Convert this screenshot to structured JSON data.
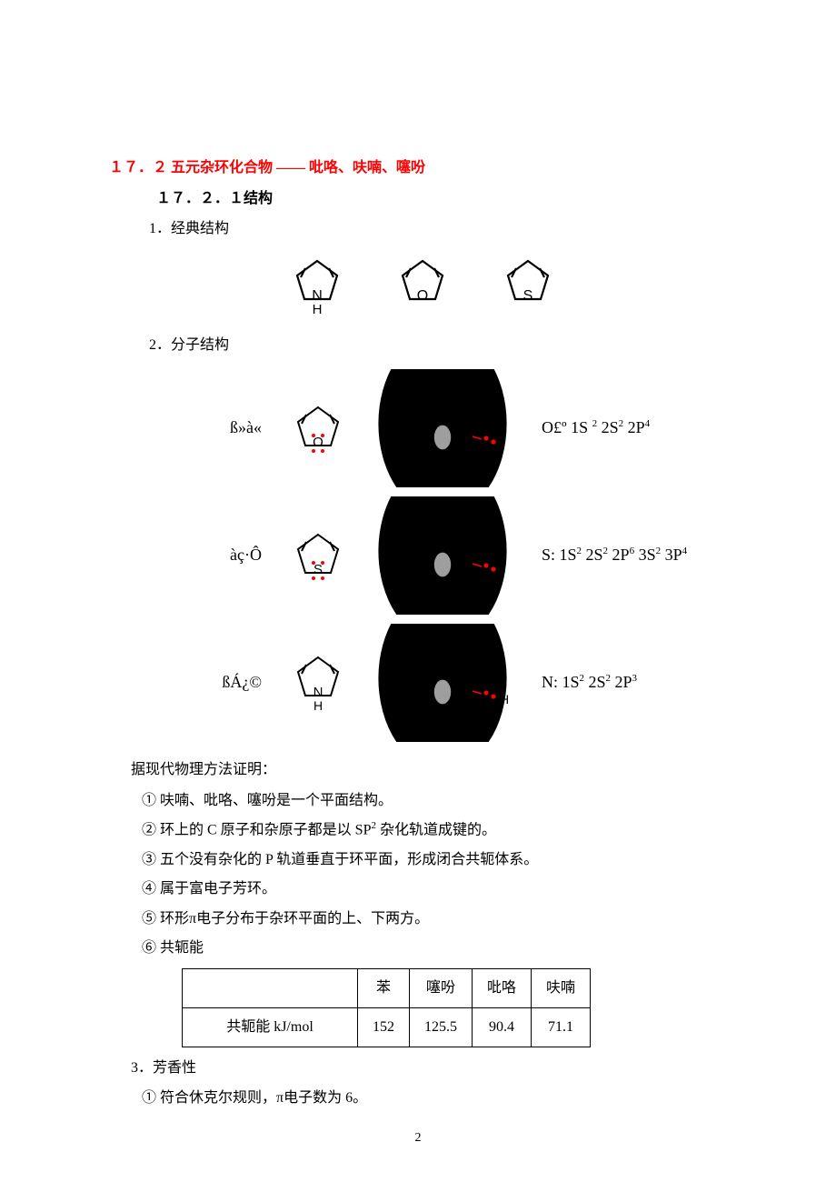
{
  "section_title": "１７．２ 五元杂环化合物  ——  吡咯、呋喃、噻吩",
  "sub_title": "１７．２．１结构",
  "item1": "1．经典结构",
  "item2": "2．分子结构",
  "structures": {
    "pyrrole_atom": "N",
    "pyrrole_h": "H",
    "furan_atom": "O",
    "thiophene_atom": "S"
  },
  "mol_rows": [
    {
      "label": "ß»à«",
      "ring_atom": "O",
      "config_plain": "O£º 1S ² 2S² 2P⁴",
      "config_html": "O£º 1S <sup>2</sup> 2S<sup>2</sup> 2P<sup>4</sup>",
      "show_H": false
    },
    {
      "label": "àç·Ô",
      "ring_atom": "S",
      "config_plain": "S: 1S² 2S² 2P⁶ 3S² 3P⁴",
      "config_html": "S: 1S<sup>2</sup> 2S<sup>2</sup> 2P<sup>6</sup> 3S<sup>2</sup> 3P<sup>4</sup>",
      "show_H": false
    },
    {
      "label": "ßÁ¿©",
      "ring_atom": "N",
      "config_plain": "N: 1S² 2S² 2P³",
      "config_html": "N: 1S<sup>2</sup> 2S<sup>2</sup> 2P<sup>3</sup>",
      "show_H": true
    }
  ],
  "proof_intro": "据现代物理方法证明：",
  "points": [
    "① 呋喃、吡咯、噻吩是一个平面结构。",
    "② 环上的 C 原子和杂原子都是以 SP<sup>2</sup> 杂化轨道成键的。",
    "③ 五个没有杂化的 P 轨道垂直于环平面，形成闭合共轭体系。",
    "④ 属于富电子芳环。",
    "⑤ 环形π电子分布于杂环平面的上、下两方。",
    "⑥ 共轭能"
  ],
  "table": {
    "header_blank": "",
    "row_label": "共轭能 kJ/mol",
    "columns": [
      "苯",
      "噻吩",
      "吡咯",
      "呋喃"
    ],
    "values": [
      "152",
      "125.5",
      "90.4",
      "71.1"
    ]
  },
  "item3": "3．芳香性",
  "aromaticity_point": "① 符合休克尔规则，π电子数为 6。",
  "page_number": "2",
  "colors": {
    "title": "#ff0000",
    "lone_pair": "#ff0000",
    "orbital_fill": "#9e9e9e",
    "orbital_dark": "#000000",
    "bond_red": "#ff0000"
  }
}
